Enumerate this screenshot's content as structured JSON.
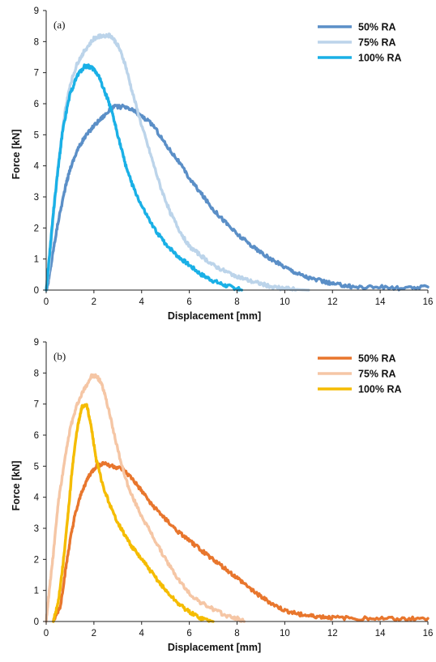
{
  "chart_data": [
    {
      "type": "line",
      "panel_label": "(a)",
      "xlabel": "Displacement [mm]",
      "ylabel": "Force [kN]",
      "xlim": [
        0,
        16
      ],
      "ylim": [
        0,
        9
      ],
      "xticks": [
        0,
        2,
        4,
        6,
        8,
        10,
        12,
        14,
        16
      ],
      "yticks": [
        0,
        1,
        2,
        3,
        4,
        5,
        6,
        7,
        8,
        9
      ],
      "grid": false,
      "legend_position": "top-right",
      "series": [
        {
          "name": "50% RA",
          "color": "#5b8fc7",
          "x": [
            0,
            0.1,
            0.3,
            0.5,
            0.8,
            1.0,
            1.3,
            1.6,
            2.0,
            2.4,
            2.8,
            3.2,
            3.6,
            4.0,
            4.5,
            5.0,
            5.5,
            6.0,
            6.5,
            7.0,
            7.5,
            8.0,
            8.5,
            9.0,
            9.5,
            10.0,
            10.5,
            11.0,
            11.5,
            12.0,
            12.5,
            13.0,
            14.0,
            15.0,
            16.0
          ],
          "y": [
            0,
            0.3,
            1.3,
            2.2,
            3.3,
            3.9,
            4.5,
            4.9,
            5.3,
            5.6,
            5.9,
            5.9,
            5.8,
            5.6,
            5.3,
            4.7,
            4.2,
            3.6,
            3.1,
            2.6,
            2.2,
            1.8,
            1.5,
            1.2,
            0.95,
            0.75,
            0.55,
            0.4,
            0.3,
            0.2,
            0.15,
            0.1,
            0.1,
            0.05,
            0.1
          ]
        },
        {
          "name": "75% RA",
          "color": "#bcd4ea",
          "x": [
            0,
            0.1,
            0.3,
            0.5,
            0.8,
            1.0,
            1.3,
            1.6,
            2.0,
            2.4,
            2.7,
            3.0,
            3.3,
            3.6,
            4.0,
            4.4,
            4.8,
            5.2,
            5.6,
            6.0,
            6.5,
            7.0,
            7.5,
            8.0,
            8.5,
            9.0,
            9.5,
            10.0,
            10.5,
            11.0
          ],
          "y": [
            0,
            0.6,
            2.4,
            4.0,
            5.8,
            6.6,
            7.3,
            7.7,
            8.1,
            8.2,
            8.2,
            7.9,
            7.3,
            6.4,
            5.3,
            4.3,
            3.3,
            2.5,
            1.9,
            1.4,
            1.1,
            0.8,
            0.6,
            0.45,
            0.3,
            0.2,
            0.1,
            0.05,
            0.02,
            0
          ]
        },
        {
          "name": "100% RA",
          "color": "#1ab0e6",
          "x": [
            0,
            0.1,
            0.3,
            0.5,
            0.7,
            1.0,
            1.3,
            1.6,
            1.8,
            2.0,
            2.2,
            2.4,
            2.6,
            2.8,
            3.0,
            3.3,
            3.6,
            4.0,
            4.5,
            5.0,
            5.5,
            6.0,
            6.5,
            7.0,
            7.5,
            8.0,
            8.2
          ],
          "y": [
            0,
            0.8,
            2.5,
            3.9,
            5.2,
            6.3,
            6.9,
            7.2,
            7.2,
            7.1,
            6.9,
            6.5,
            6.1,
            5.6,
            5.0,
            4.1,
            3.4,
            2.7,
            2.0,
            1.5,
            1.1,
            0.8,
            0.5,
            0.3,
            0.15,
            0.05,
            0
          ]
        }
      ]
    },
    {
      "type": "line",
      "panel_label": "(b)",
      "xlabel": "Displacement [mm]",
      "ylabel": "Force [kN]",
      "xlim": [
        0,
        16
      ],
      "ylim": [
        0,
        9
      ],
      "xticks": [
        0,
        2,
        4,
        6,
        8,
        10,
        12,
        14,
        16
      ],
      "yticks": [
        0,
        1,
        2,
        3,
        4,
        5,
        6,
        7,
        8,
        9
      ],
      "grid": false,
      "legend_position": "top-right",
      "series": [
        {
          "name": "50% RA",
          "color": "#e8762d",
          "x": [
            0.3,
            0.6,
            0.8,
            1.0,
            1.2,
            1.5,
            1.8,
            2.1,
            2.4,
            2.8,
            3.2,
            3.6,
            4.0,
            4.5,
            5.0,
            5.5,
            6.0,
            6.5,
            7.0,
            7.5,
            8.0,
            8.5,
            9.0,
            9.5,
            10.0,
            10.5,
            11.0,
            11.5,
            12.0,
            13.0,
            14.0,
            15.0,
            16.0
          ],
          "y": [
            0,
            0.5,
            1.6,
            2.6,
            3.4,
            4.2,
            4.7,
            5.0,
            5.1,
            5.0,
            4.9,
            4.6,
            4.2,
            3.7,
            3.3,
            2.9,
            2.6,
            2.3,
            2.0,
            1.7,
            1.4,
            1.1,
            0.8,
            0.55,
            0.35,
            0.25,
            0.18,
            0.15,
            0.12,
            0.1,
            0.1,
            0.08,
            0.1
          ]
        },
        {
          "name": "75% RA",
          "color": "#f5c6a5",
          "x": [
            0,
            0.1,
            0.3,
            0.5,
            0.8,
            1.0,
            1.3,
            1.6,
            1.9,
            2.1,
            2.3,
            2.5,
            2.8,
            3.1,
            3.5,
            4.0,
            4.5,
            5.0,
            5.5,
            6.0,
            6.5,
            7.0,
            7.5,
            8.0,
            8.3
          ],
          "y": [
            0,
            0.8,
            2.2,
            3.8,
            5.3,
            6.2,
            7.0,
            7.5,
            7.9,
            7.9,
            7.7,
            7.2,
            6.2,
            5.2,
            4.2,
            3.4,
            2.7,
            2.0,
            1.4,
            0.9,
            0.6,
            0.4,
            0.2,
            0.1,
            0
          ]
        },
        {
          "name": "100% RA",
          "color": "#f5bc00",
          "x": [
            0.3,
            0.5,
            0.7,
            0.9,
            1.1,
            1.3,
            1.5,
            1.7,
            1.9,
            2.1,
            2.4,
            2.8,
            3.2,
            3.6,
            4.0,
            4.5,
            5.0,
            5.5,
            6.0,
            6.5,
            7.0
          ],
          "y": [
            0,
            0.6,
            1.8,
            3.3,
            5.0,
            6.2,
            6.9,
            7.0,
            6.2,
            5.2,
            4.3,
            3.5,
            2.9,
            2.4,
            2.0,
            1.5,
            1.0,
            0.6,
            0.3,
            0.1,
            0
          ]
        }
      ]
    }
  ]
}
